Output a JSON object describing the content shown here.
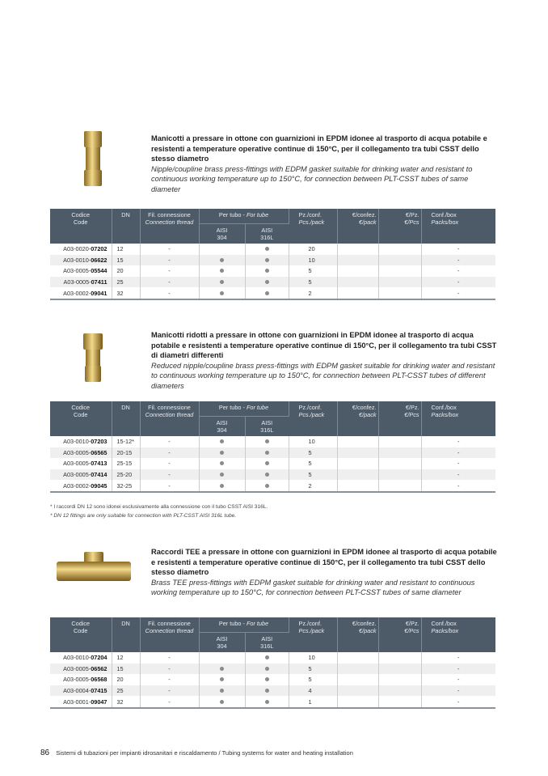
{
  "columns": {
    "code": [
      "Codice",
      "Code"
    ],
    "dn": "DN",
    "thread": [
      "Fil. connessione",
      "Connection thread"
    ],
    "tube_it": "Per tubo - ",
    "tube_en": "For tube",
    "aisi304": [
      "AISI",
      "304"
    ],
    "aisi316": [
      "AISI",
      "316L"
    ],
    "pcs": [
      "Pz./conf.",
      "Pcs./pack"
    ],
    "eur_pack": [
      "€/confez.",
      "€/pack"
    ],
    "eur_pcs": [
      "€/Pz.",
      "€/Pcs"
    ],
    "box": [
      "Conf./box",
      "Packs/box"
    ]
  },
  "sections": [
    {
      "title_it": "Manicotti a pressare in ottone con guarnizioni in EPDM idonee al trasporto di acqua potabile e resistenti a temperature operative continue di 150°C, per il collegamento tra tubi CSST dello stesso diametro",
      "title_en": "Nipple/coupline brass press-fittings with EDPM gasket suitable for drinking water and resistant to continuous working temperature up to 150°C, for connection between PLT-CSST tubes of same diameter",
      "image": "brass-coupling",
      "rows": [
        {
          "pre": "A03-0020-",
          "code": "07202",
          "dn": "12",
          "thread": "-",
          "a304": false,
          "a316": true,
          "pcs": "20",
          "box": "-"
        },
        {
          "pre": "A03-0010-",
          "code": "06622",
          "dn": "15",
          "thread": "-",
          "a304": true,
          "a316": true,
          "pcs": "10",
          "box": "-"
        },
        {
          "pre": "A03-0005-",
          "code": "05544",
          "dn": "20",
          "thread": "-",
          "a304": true,
          "a316": true,
          "pcs": "5",
          "box": "-"
        },
        {
          "pre": "A03-0005-",
          "code": "07411",
          "dn": "25",
          "thread": "-",
          "a304": true,
          "a316": true,
          "pcs": "5",
          "box": "-"
        },
        {
          "pre": "A03-0002-",
          "code": "09041",
          "dn": "32",
          "thread": "-",
          "a304": true,
          "a316": true,
          "pcs": "2",
          "box": "-"
        }
      ]
    },
    {
      "title_it": "Manicotti ridotti a pressare in ottone con guarnizioni in EPDM idonee al trasporto di acqua potabile e resistenti a temperature operative continue di 150°C, per il collegamento tra tubi CSST di diametri differenti",
      "title_en": "Reduced nipple/coupline brass press-fittings with EDPM gasket suitable for drinking water and resistant to continuous working temperature up to 150°C, for connection between PLT-CSST tubes of different diameters",
      "image": "reduced-brass-coupling",
      "rows": [
        {
          "pre": "A03-0010-",
          "code": "07203",
          "dn": "15-12*",
          "thread": "-",
          "a304": true,
          "a316": true,
          "pcs": "10",
          "box": "-"
        },
        {
          "pre": "A03-0005-",
          "code": "06565",
          "dn": "20-15",
          "thread": "-",
          "a304": true,
          "a316": true,
          "pcs": "5",
          "box": "-"
        },
        {
          "pre": "A03-0005-",
          "code": "07413",
          "dn": "25-15",
          "thread": "-",
          "a304": true,
          "a316": true,
          "pcs": "5",
          "box": "-"
        },
        {
          "pre": "A03-0005-",
          "code": "07414",
          "dn": "25-20",
          "thread": "-",
          "a304": true,
          "a316": true,
          "pcs": "5",
          "box": "-"
        },
        {
          "pre": "A03-0002-",
          "code": "09045",
          "dn": "32-25",
          "thread": "-",
          "a304": true,
          "a316": true,
          "pcs": "2",
          "box": "-"
        }
      ],
      "footnote_it": "* I raccordi DN 12 sono idonei esclusivamente alla connessione con il tubo CSST AISI 316L.",
      "footnote_en": "* DN 12 fittings are only suitable for connection with PLT-CSST AISI 316L tube."
    },
    {
      "title_it": "Raccordi TEE a pressare in ottone con guarnizioni in EPDM idonee al trasporto di acqua potabile e resistenti a temperature operative continue di 150°C, per il collegamento tra tubi CSST dello stesso diametro",
      "title_en": "Brass TEE press-fittings with EDPM gasket suitable for drinking water and resistant to continuous working temperature up to 150°C, for connection between PLT-CSST tubes of same diameter",
      "image": "brass-tee",
      "rows": [
        {
          "pre": "A03-0010-",
          "code": "07204",
          "dn": "12",
          "thread": "-",
          "a304": false,
          "a316": true,
          "pcs": "10",
          "box": "-"
        },
        {
          "pre": "A03-0005-",
          "code": "06562",
          "dn": "15",
          "thread": "-",
          "a304": true,
          "a316": true,
          "pcs": "5",
          "box": "-"
        },
        {
          "pre": "A03-0005-",
          "code": "06568",
          "dn": "20",
          "thread": "-",
          "a304": true,
          "a316": true,
          "pcs": "5",
          "box": "-"
        },
        {
          "pre": "A03-0004-",
          "code": "07415",
          "dn": "25",
          "thread": "-",
          "a304": true,
          "a316": true,
          "pcs": "4",
          "box": "-"
        },
        {
          "pre": "A03-0001-",
          "code": "09047",
          "dn": "32",
          "thread": "-",
          "a304": true,
          "a316": true,
          "pcs": "1",
          "box": "-"
        }
      ]
    }
  ],
  "footer": {
    "page_number": "86",
    "text": "Sistemi di tubazioni per impianti idrosanitari e riscaldamento / Tubing systems for water and heating installation"
  },
  "colors": {
    "header_bg": "#4d5a68",
    "brass": "#c9a24a"
  }
}
